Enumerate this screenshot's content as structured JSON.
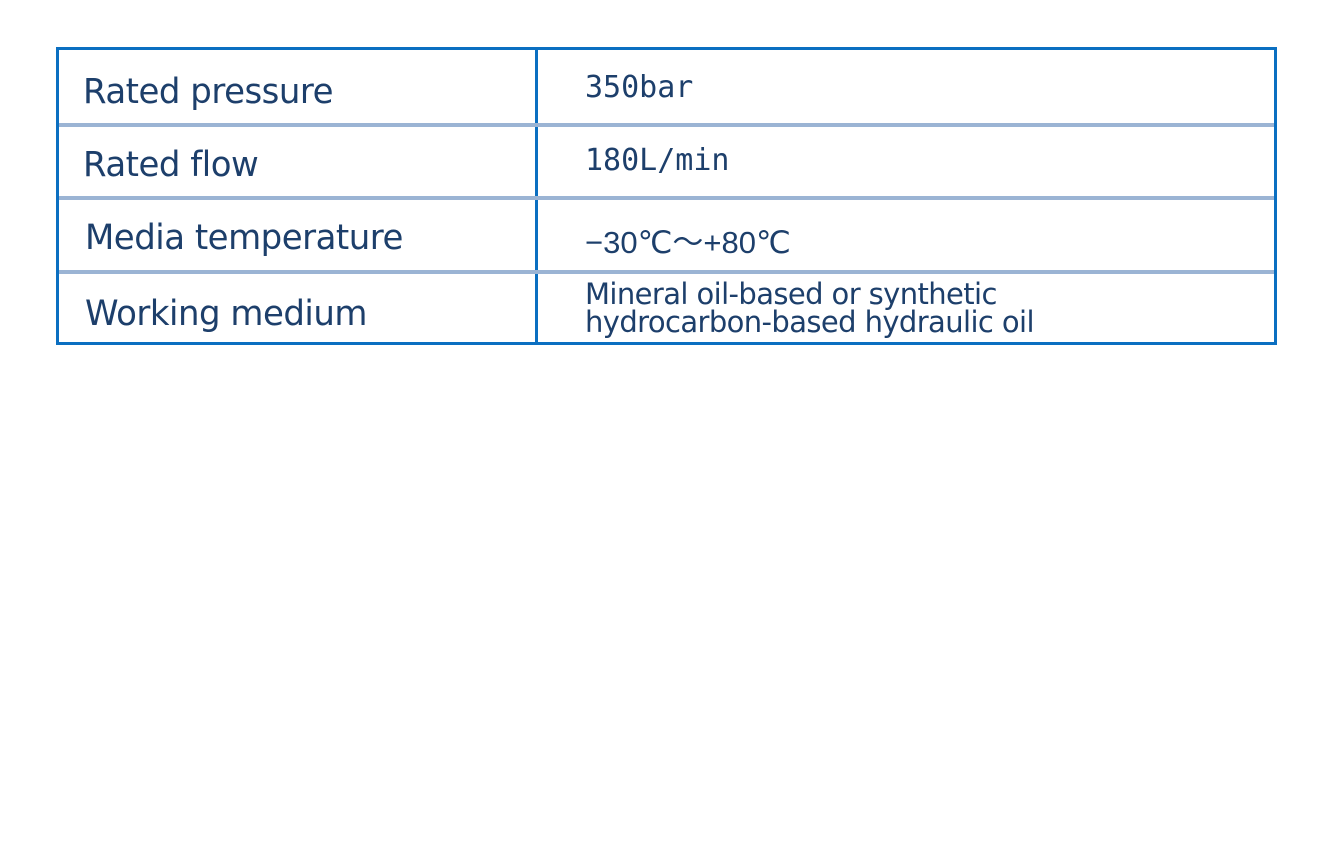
{
  "spec_table": {
    "rows": [
      {
        "label": "Rated pressure",
        "value": "350bar"
      },
      {
        "label": "Rated flow",
        "value": "180L/min"
      },
      {
        "label": "Media temperature",
        "value": "−30℃～+80℃"
      },
      {
        "label": "Working medium",
        "value_lines": [
          "Mineral oil-based or synthetic",
          "hydrocarbon-based hydraulic oil"
        ]
      }
    ],
    "colors": {
      "border": "#0b6fc1",
      "row_divider": "#9bb4d4",
      "text": "#1d3f6b"
    }
  }
}
